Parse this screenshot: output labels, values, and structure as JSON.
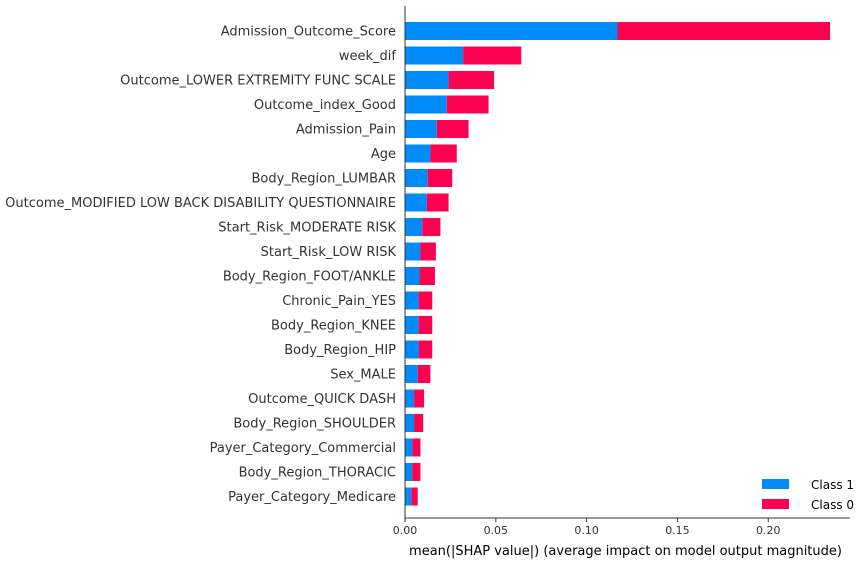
{
  "chart_data": {
    "type": "bar",
    "orientation": "horizontal",
    "stacked": true,
    "title": "",
    "xlabel": "mean(|SHAP value|) (average impact on model output magnitude)",
    "ylabel": "",
    "xlim": [
      0,
      0.245
    ],
    "xticks": [
      0,
      0.05,
      0.1,
      0.15,
      0.2
    ],
    "xtick_labels": [
      "0.00",
      "0.05",
      "0.10",
      "0.15",
      "0.20"
    ],
    "grid": false,
    "legend_position": "bottom-right",
    "categories": [
      "Admission_Outcome_Score",
      "week_dif",
      "Outcome_LOWER EXTREMITY FUNC SCALE",
      "Outcome_index_Good",
      "Admission_Pain",
      "Age",
      "Body_Region_LUMBAR",
      "Outcome_MODIFIED LOW BACK DISABILITY QUESTIONNAIRE",
      "Start_Risk_MODERATE RISK",
      "Start_Risk_LOW RISK",
      "Body_Region_FOOT/ANKLE",
      "Chronic_Pain_YES",
      "Body_Region_KNEE",
      "Body_Region_HIP",
      "Sex_MALE",
      "Outcome_QUICK DASH",
      "Body_Region_SHOULDER",
      "Payer_Category_Commercial",
      "Body_Region_THORACIC",
      "Payer_Category_Medicare"
    ],
    "series": [
      {
        "name": "Class 1",
        "color": "#008bfb",
        "values": [
          0.117,
          0.032,
          0.024,
          0.023,
          0.0175,
          0.014,
          0.0125,
          0.012,
          0.0095,
          0.0085,
          0.008,
          0.0075,
          0.0075,
          0.0075,
          0.007,
          0.005,
          0.005,
          0.004,
          0.004,
          0.0035
        ]
      },
      {
        "name": "Class 0",
        "color": "#ff0051",
        "values": [
          0.117,
          0.032,
          0.025,
          0.023,
          0.0175,
          0.0145,
          0.0135,
          0.012,
          0.01,
          0.0085,
          0.0085,
          0.0075,
          0.0075,
          0.0075,
          0.007,
          0.0055,
          0.005,
          0.0045,
          0.0045,
          0.0035
        ]
      }
    ]
  }
}
